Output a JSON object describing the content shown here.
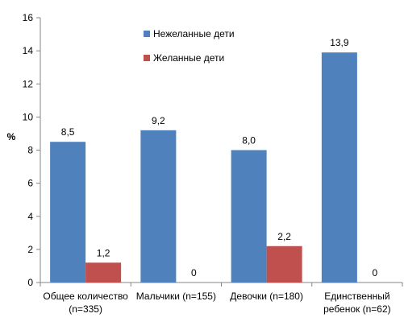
{
  "chart_data": {
    "type": "bar",
    "categories": [
      [
        "Общее количество",
        "(n=335)"
      ],
      [
        "Мальчики (n=155)"
      ],
      [
        "Девочки (n=180)"
      ],
      [
        "Единственный",
        "ребенок (n=62)"
      ]
    ],
    "series": [
      {
        "name": "Нежеланные дети",
        "values": [
          8.5,
          9.2,
          8.0,
          13.9
        ],
        "labels": [
          "8,5",
          "9,2",
          "8,0",
          "13,9"
        ],
        "color": "#4f81bd"
      },
      {
        "name": "Желанные дети",
        "values": [
          1.2,
          0,
          2.2,
          0
        ],
        "labels": [
          "1,2",
          "0",
          "2,2",
          "0"
        ],
        "color": "#c0504d"
      }
    ],
    "ylabel": "%",
    "ylim": [
      0,
      16
    ],
    "yticks": [
      0,
      2,
      4,
      6,
      8,
      10,
      12,
      14,
      16
    ],
    "legend": "inside-top"
  }
}
